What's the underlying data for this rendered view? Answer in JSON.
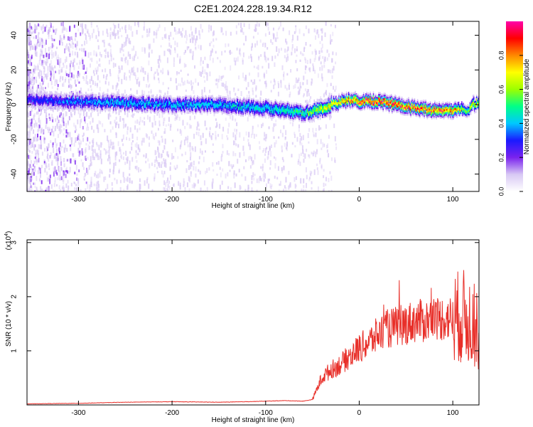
{
  "title": "C2E1.2024.228.19.34.R12",
  "chart_data": [
    {
      "type": "heatmap",
      "xlabel": "Height of straight line (km)",
      "ylabel": "Frequency (Hz)",
      "xlim": [
        -355,
        128
      ],
      "ylim": [
        -50,
        48
      ],
      "x_ticks": [
        -300,
        -200,
        -100,
        0,
        100
      ],
      "y_ticks": [
        -40,
        -20,
        0,
        20,
        40
      ],
      "colorbar": {
        "label": "Normalized spectral amplitude",
        "range": [
          0,
          1
        ],
        "ticks": [
          "0.0",
          "0.2",
          "0.4",
          "0.6",
          "0.8"
        ],
        "colors": [
          "#ffffff",
          "#d8c8f4",
          "#7a22ee",
          "#1a1aff",
          "#00c8ff",
          "#00ff88",
          "#9cff00",
          "#ffff00",
          "#ff8800",
          "#ff0000",
          "#ff00aa"
        ]
      },
      "ridge": {
        "x": [
          -350,
          -300,
          -250,
          -200,
          -150,
          -100,
          -80,
          -60,
          -45,
          -30,
          -20,
          -10,
          0,
          20,
          40,
          60,
          80,
          100,
          110,
          115,
          120,
          128
        ],
        "frequency": [
          3,
          2,
          1,
          0,
          0,
          -2,
          -3,
          -5,
          -3,
          0,
          2,
          3,
          2,
          2,
          0,
          -2,
          -3,
          -3,
          -2,
          -4,
          0,
          2
        ],
        "amplitude": [
          0.3,
          0.35,
          0.4,
          0.4,
          0.42,
          0.42,
          0.48,
          0.5,
          0.6,
          0.7,
          0.75,
          0.8,
          0.85,
          0.9,
          0.9,
          0.85,
          0.85,
          0.8,
          0.6,
          0.5,
          0.7,
          0.6
        ]
      }
    },
    {
      "type": "line",
      "xlabel": "Height of straight line (km)",
      "ylabel": "SNR (10 * v/v)",
      "ylabel_scale": "(x10",
      "ylabel_scale_exp": "4",
      "xlim": [
        -355,
        128
      ],
      "ylim": [
        0,
        3.05
      ],
      "x_ticks": [
        -300,
        -200,
        -100,
        0,
        100
      ],
      "y_ticks": [
        1,
        2,
        3
      ],
      "color": "#e8302a",
      "series": [
        {
          "x": [
            -355,
            -300,
            -250,
            -200,
            -150,
            -120,
            -100,
            -80,
            -60,
            -50,
            -45,
            -40,
            -30,
            -20,
            -10,
            0,
            10,
            20,
            30,
            40,
            50,
            60,
            70,
            80,
            90,
            100,
            105,
            110,
            115,
            120,
            125,
            128
          ],
          "values": [
            0.02,
            0.03,
            0.05,
            0.06,
            0.05,
            0.06,
            0.07,
            0.08,
            0.07,
            0.1,
            0.3,
            0.5,
            0.65,
            0.75,
            0.9,
            1.05,
            1.15,
            1.3,
            1.4,
            1.45,
            1.5,
            1.55,
            1.55,
            1.6,
            1.6,
            1.6,
            1.62,
            1.65,
            1.6,
            1.55,
            1.4,
            1.3
          ]
        }
      ]
    }
  ]
}
